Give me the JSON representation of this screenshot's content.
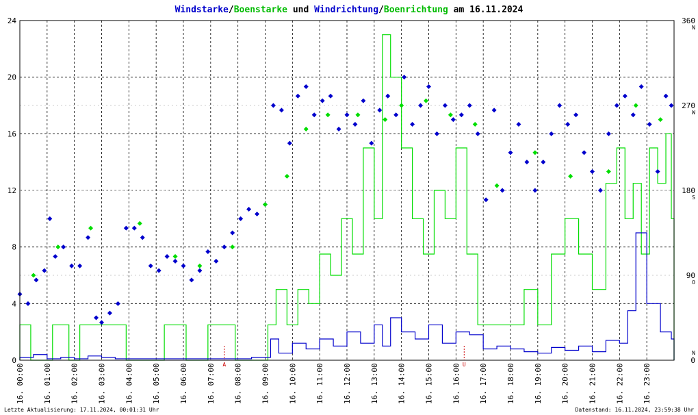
{
  "chart_data": {
    "type": "scatter",
    "title_parts": [
      {
        "text": "Windstarke",
        "color": "#0000cc"
      },
      {
        "text": "/",
        "color": "#000000"
      },
      {
        "text": "Boenstarke",
        "color": "#00bb00"
      },
      {
        "text": " und ",
        "color": "#000000"
      },
      {
        "text": "Windrichtung",
        "color": "#0000cc"
      },
      {
        "text": "/",
        "color": "#000000"
      },
      {
        "text": "Boenrichtung",
        "color": "#00bb00"
      },
      {
        "text": " am 16.11.2024",
        "color": "#000000"
      }
    ],
    "left_axis": {
      "ylim": [
        0,
        24
      ],
      "ticks": [
        "0",
        "4",
        "8",
        "12",
        "16",
        "20",
        "24"
      ]
    },
    "right_axis": {
      "ylim": [
        0,
        360
      ],
      "ticks": [
        "0",
        "90",
        "180",
        "270",
        "360"
      ],
      "compass": [
        "N",
        "O",
        "S",
        "W",
        "N"
      ]
    },
    "x_tick_labels": [
      "16. 00:00",
      "16. 01:00",
      "16. 02:00",
      "16. 03:00",
      "16. 04:00",
      "16. 05:00",
      "16. 06:00",
      "16. 07:00",
      "16. 08:00",
      "16. 09:00",
      "16. 10:00",
      "16. 11:00",
      "16. 12:00",
      "16. 13:00",
      "16. 14:00",
      "16. 15:00",
      "16. 16:00",
      "16. 17:00",
      "16. 18:00",
      "16. 19:00",
      "16. 20:00",
      "16. 21:00",
      "16. 22:00",
      "16. 23:00"
    ],
    "xlim_hours": [
      0,
      24
    ],
    "markers": [
      {
        "hour": 7.5,
        "label": "A"
      },
      {
        "hour": 16.3,
        "label": "U"
      }
    ],
    "grid": true,
    "colors": {
      "wind": "#0000cc",
      "gust": "#00dd00",
      "marker": "#cc0000"
    },
    "series": [
      {
        "name": "Windrichtung",
        "kind": "direction",
        "x": [
          0.0,
          0.3,
          0.6,
          0.9,
          1.1,
          1.3,
          1.6,
          1.9,
          2.2,
          2.5,
          2.8,
          3.0,
          3.3,
          3.6,
          3.9,
          4.2,
          4.5,
          4.8,
          5.1,
          5.4,
          5.7,
          6.0,
          6.3,
          6.6,
          6.9,
          7.2,
          7.5,
          7.8,
          8.1,
          8.4,
          8.7,
          9.0,
          9.3,
          9.6,
          9.9,
          10.2,
          10.5,
          10.8,
          11.1,
          11.4,
          11.7,
          12.0,
          12.3,
          12.6,
          12.9,
          13.2,
          13.5,
          13.8,
          14.1,
          14.4,
          14.7,
          15.0,
          15.3,
          15.6,
          15.9,
          16.2,
          16.5,
          16.8,
          17.1,
          17.4,
          17.7,
          18.0,
          18.3,
          18.6,
          18.9,
          19.2,
          19.5,
          19.8,
          20.1,
          20.4,
          20.7,
          21.0,
          21.3,
          21.6,
          21.9,
          22.2,
          22.5,
          22.8,
          23.1,
          23.4,
          23.7,
          23.9
        ],
        "y": [
          70,
          60,
          85,
          95,
          150,
          110,
          120,
          100,
          100,
          130,
          45,
          40,
          50,
          60,
          140,
          140,
          130,
          100,
          95,
          110,
          105,
          100,
          85,
          95,
          115,
          105,
          120,
          135,
          150,
          160,
          155,
          165,
          270,
          265,
          230,
          280,
          290,
          260,
          275,
          280,
          245,
          260,
          250,
          275,
          230,
          265,
          280,
          260,
          300,
          250,
          270,
          290,
          240,
          270,
          255,
          260,
          270,
          240,
          170,
          265,
          180,
          220,
          250,
          210,
          180,
          210,
          240,
          270,
          250,
          260,
          220,
          200,
          180,
          240,
          270,
          280,
          260,
          290,
          250,
          200,
          280,
          270
        ]
      },
      {
        "name": "Boenrichtung",
        "kind": "direction",
        "x": [
          0.5,
          1.4,
          2.6,
          4.4,
          5.7,
          6.6,
          7.8,
          9.0,
          9.8,
          10.5,
          11.3,
          12.4,
          13.4,
          14.0,
          14.9,
          15.8,
          16.7,
          17.5,
          18.9,
          20.2,
          21.6,
          22.6,
          23.5
        ],
        "y": [
          90,
          120,
          140,
          145,
          110,
          100,
          120,
          165,
          195,
          245,
          260,
          260,
          255,
          270,
          275,
          260,
          250,
          185,
          220,
          195,
          200,
          270,
          255
        ]
      },
      {
        "name": "Windstarke",
        "kind": "speed",
        "x": [
          0.0,
          0.5,
          1.0,
          1.5,
          2.0,
          2.5,
          3.0,
          3.5,
          4.0,
          4.5,
          5.0,
          5.5,
          6.0,
          6.5,
          7.0,
          7.5,
          8.0,
          8.5,
          9.0,
          9.2,
          9.5,
          10.0,
          10.5,
          11.0,
          11.5,
          12.0,
          12.5,
          13.0,
          13.3,
          13.6,
          14.0,
          14.5,
          15.0,
          15.5,
          16.0,
          16.5,
          17.0,
          17.5,
          18.0,
          18.5,
          19.0,
          19.5,
          20.0,
          20.5,
          21.0,
          21.5,
          22.0,
          22.3,
          22.6,
          23.0,
          23.5,
          23.9
        ],
        "y": [
          0.2,
          0.4,
          0.1,
          0.2,
          0.1,
          0.3,
          0.2,
          0.1,
          0.1,
          0.1,
          0.1,
          0.1,
          0.1,
          0.1,
          0.1,
          0.1,
          0.1,
          0.2,
          0.2,
          1.5,
          0.5,
          1.2,
          0.8,
          1.5,
          1.0,
          2.0,
          1.2,
          2.5,
          1.0,
          3.0,
          2.0,
          1.5,
          2.5,
          1.2,
          2.0,
          1.8,
          0.8,
          1.0,
          0.8,
          0.6,
          0.5,
          0.9,
          0.7,
          1.0,
          0.6,
          1.4,
          1.2,
          3.5,
          9.0,
          4.0,
          2.0,
          1.5
        ]
      },
      {
        "name": "Boenstarke",
        "kind": "speed",
        "x": [
          0.0,
          0.4,
          0.8,
          1.2,
          1.8,
          2.2,
          2.9,
          3.3,
          3.9,
          4.6,
          5.3,
          6.1,
          6.9,
          7.4,
          7.9,
          8.6,
          9.1,
          9.4,
          9.8,
          10.2,
          10.6,
          11.0,
          11.4,
          11.8,
          12.2,
          12.6,
          13.0,
          13.3,
          13.6,
          14.0,
          14.4,
          14.8,
          15.2,
          15.6,
          16.0,
          16.4,
          16.8,
          17.2,
          17.6,
          18.0,
          18.5,
          19.0,
          19.5,
          20.0,
          20.5,
          21.0,
          21.5,
          21.9,
          22.2,
          22.5,
          22.8,
          23.1,
          23.4,
          23.7,
          23.9
        ],
        "y": [
          2.5,
          0,
          0,
          2.5,
          0,
          2.5,
          2.5,
          2.5,
          0,
          0,
          2.5,
          0,
          2.5,
          2.5,
          0,
          0,
          2.5,
          5.0,
          2.5,
          5.0,
          4.0,
          7.5,
          6.0,
          10.0,
          7.5,
          15.0,
          10.0,
          23.0,
          20.0,
          15.0,
          10.0,
          7.5,
          12.0,
          10.0,
          15.0,
          7.5,
          2.5,
          2.5,
          2.5,
          2.5,
          5.0,
          2.5,
          7.5,
          10.0,
          7.5,
          5.0,
          12.5,
          15.0,
          10.0,
          12.5,
          7.5,
          15.0,
          12.5,
          16.0,
          10.0
        ]
      }
    ]
  },
  "footer": {
    "left": "Letzte Aktualisierung: 17.11.2024, 00:01:31 Uhr",
    "right": "Datenstand: 16.11.2024, 23:59:38 Uhr"
  }
}
